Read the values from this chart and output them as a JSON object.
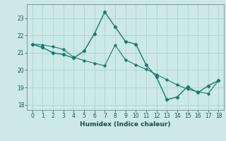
{
  "x": [
    0,
    1,
    2,
    3,
    4,
    5,
    6,
    7,
    8,
    9,
    10,
    11,
    12,
    13,
    14,
    15,
    16,
    17,
    18
  ],
  "y_main": [
    21.5,
    21.3,
    21.0,
    20.9,
    20.7,
    21.1,
    22.1,
    23.35,
    22.5,
    21.65,
    21.5,
    20.3,
    19.6,
    18.3,
    18.45,
    19.05,
    18.7,
    19.1,
    19.4
  ],
  "y_trend": [
    21.5,
    21.45,
    21.35,
    21.2,
    20.75,
    20.55,
    20.4,
    20.25,
    21.45,
    20.6,
    20.3,
    20.05,
    19.75,
    19.45,
    19.15,
    18.9,
    18.75,
    18.65,
    19.4
  ],
  "line_color": "#1a7a6e",
  "bg_color": "#cce8e8",
  "grid_color": "#aacece",
  "xlabel": "Humidex (Indice chaleur)",
  "ylim": [
    17.7,
    23.8
  ],
  "xlim": [
    -0.5,
    18.5
  ],
  "yticks": [
    18,
    19,
    20,
    21,
    22,
    23
  ],
  "xticks": [
    0,
    1,
    2,
    3,
    4,
    5,
    6,
    7,
    8,
    9,
    10,
    11,
    12,
    13,
    14,
    15,
    16,
    17,
    18
  ]
}
